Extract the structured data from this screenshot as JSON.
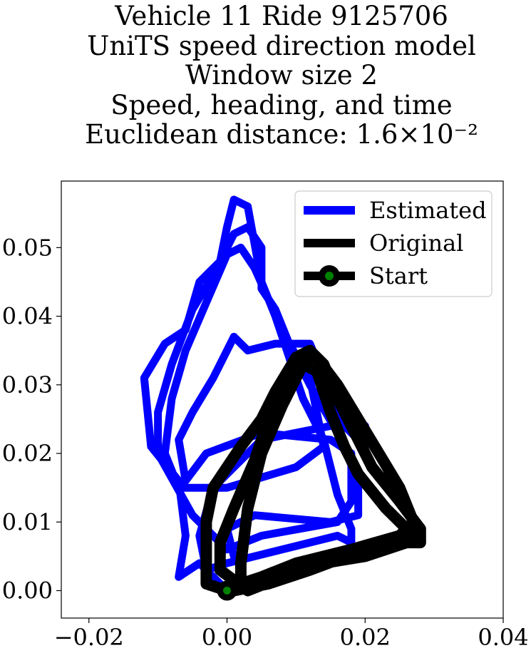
{
  "chart_data": {
    "type": "line",
    "title_lines": [
      "Vehicle 11 Ride 9125706",
      "UniTS speed direction model",
      "Window size 2",
      "Speed, heading, and time",
      "Euclidean distance: 1.6×10⁻²"
    ],
    "xlabel": "",
    "ylabel": "",
    "xlim": [
      -0.024,
      0.04
    ],
    "ylim": [
      -0.004,
      0.0597
    ],
    "xticks": [
      -0.02,
      0.0,
      0.02,
      0.04
    ],
    "xtick_labels": [
      "−0.02",
      "0.00",
      "0.02",
      "0.04"
    ],
    "yticks": [
      0.0,
      0.01,
      0.02,
      0.03,
      0.04,
      0.05
    ],
    "ytick_labels": [
      "0.00",
      "0.01",
      "0.02",
      "0.03",
      "0.04",
      "0.05"
    ],
    "grid": false,
    "legend_position": "upper right",
    "legend": [
      "Estimated",
      "Original",
      "Start"
    ],
    "series": [
      {
        "name": "Estimated",
        "color": "#0000ff",
        "points": [
          [
            0.0,
            0.0
          ],
          [
            -0.004,
            0.004
          ],
          [
            -0.007,
            0.002
          ],
          [
            -0.006,
            0.008
          ],
          [
            -0.007,
            0.016
          ],
          [
            -0.011,
            0.021
          ],
          [
            -0.012,
            0.031
          ],
          [
            -0.009,
            0.036
          ],
          [
            -0.006,
            0.038
          ],
          [
            -0.004,
            0.045
          ],
          [
            -0.001,
            0.048
          ],
          [
            0.0,
            0.053
          ],
          [
            0.001,
            0.057
          ],
          [
            0.003,
            0.056
          ],
          [
            0.005,
            0.045
          ],
          [
            0.007,
            0.04
          ],
          [
            0.009,
            0.034
          ],
          [
            0.011,
            0.028
          ],
          [
            0.014,
            0.022
          ],
          [
            0.016,
            0.014
          ],
          [
            0.018,
            0.009
          ],
          [
            0.018,
            0.007
          ],
          [
            0.016,
            0.008
          ],
          [
            0.0,
            0.004
          ],
          [
            -0.003,
            0.003
          ],
          [
            -0.004,
            0.008
          ],
          [
            -0.002,
            0.015
          ],
          [
            0.005,
            0.022
          ],
          [
            0.015,
            0.024
          ],
          [
            0.02,
            0.024
          ],
          [
            0.02,
            0.021
          ],
          [
            0.017,
            0.024
          ],
          [
            0.012,
            0.036
          ],
          [
            0.007,
            0.036
          ],
          [
            0.003,
            0.035
          ],
          [
            0.001,
            0.037
          ],
          [
            -0.002,
            0.031
          ],
          [
            -0.005,
            0.026
          ],
          [
            -0.007,
            0.022
          ],
          [
            -0.006,
            0.016
          ],
          [
            -0.003,
            0.02
          ],
          [
            0.005,
            0.023
          ],
          [
            0.015,
            0.022
          ],
          [
            0.018,
            0.02
          ],
          [
            0.018,
            0.013
          ],
          [
            0.016,
            0.01
          ],
          [
            0.005,
            0.008
          ],
          [
            0.0,
            0.006
          ],
          [
            -0.005,
            0.011
          ],
          [
            -0.01,
            0.02
          ],
          [
            -0.01,
            0.026
          ],
          [
            -0.008,
            0.033
          ],
          [
            -0.005,
            0.041
          ],
          [
            -0.002,
            0.046
          ],
          [
            0.001,
            0.052
          ],
          [
            0.003,
            0.053
          ],
          [
            0.005,
            0.05
          ],
          [
            0.005,
            0.044
          ],
          [
            0.007,
            0.041
          ],
          [
            0.009,
            0.036
          ],
          [
            0.012,
            0.031
          ],
          [
            0.013,
            0.026
          ],
          [
            0.014,
            0.021
          ],
          [
            0.01,
            0.018
          ],
          [
            0.0,
            0.015
          ],
          [
            -0.007,
            0.015
          ],
          [
            -0.009,
            0.02
          ],
          [
            -0.008,
            0.028
          ],
          [
            -0.006,
            0.035
          ],
          [
            -0.003,
            0.042
          ],
          [
            0.0,
            0.049
          ],
          [
            0.002,
            0.05
          ],
          [
            0.004,
            0.047
          ],
          [
            0.008,
            0.038
          ],
          [
            0.012,
            0.03
          ],
          [
            0.016,
            0.023
          ],
          [
            0.019,
            0.016
          ],
          [
            0.019,
            0.011
          ],
          [
            0.015,
            0.01
          ],
          [
            0.004,
            0.011
          ],
          [
            0.0,
            0.009
          ],
          [
            0.001,
            0.005
          ]
        ]
      },
      {
        "name": "Original",
        "color": "#000000",
        "points": [
          [
            0.0,
            0.0
          ],
          [
            -0.003,
            0.001
          ],
          [
            -0.003,
            0.01
          ],
          [
            -0.002,
            0.015
          ],
          [
            0.002,
            0.021
          ],
          [
            0.005,
            0.025
          ],
          [
            0.007,
            0.029
          ],
          [
            0.01,
            0.034
          ],
          [
            0.012,
            0.035
          ],
          [
            0.014,
            0.033
          ],
          [
            0.016,
            0.028
          ],
          [
            0.018,
            0.024
          ],
          [
            0.021,
            0.018
          ],
          [
            0.025,
            0.013
          ],
          [
            0.028,
            0.009
          ],
          [
            0.028,
            0.007
          ],
          [
            0.026,
            0.007
          ],
          [
            0.02,
            0.005
          ],
          [
            0.014,
            0.004
          ],
          [
            0.008,
            0.002
          ],
          [
            0.003,
            0.0
          ],
          [
            -0.001,
            0.003
          ],
          [
            -0.001,
            0.007
          ],
          [
            0.001,
            0.012
          ],
          [
            0.004,
            0.019
          ],
          [
            0.006,
            0.025
          ],
          [
            0.008,
            0.03
          ],
          [
            0.011,
            0.034
          ],
          [
            0.013,
            0.034
          ],
          [
            0.016,
            0.03
          ],
          [
            0.019,
            0.025
          ],
          [
            0.022,
            0.02
          ],
          [
            0.025,
            0.015
          ],
          [
            0.027,
            0.01
          ],
          [
            0.025,
            0.008
          ],
          [
            0.018,
            0.006
          ],
          [
            0.01,
            0.004
          ],
          [
            0.005,
            0.002
          ],
          [
            0.002,
            0.001
          ],
          [
            0.002,
            0.004
          ],
          [
            0.003,
            0.012
          ],
          [
            0.005,
            0.02
          ],
          [
            0.008,
            0.027
          ],
          [
            0.011,
            0.033
          ],
          [
            0.013,
            0.032
          ],
          [
            0.015,
            0.026
          ],
          [
            0.017,
            0.021
          ],
          [
            0.019,
            0.017
          ],
          [
            0.023,
            0.012
          ],
          [
            0.027,
            0.008
          ],
          [
            0.02,
            0.006
          ],
          [
            0.012,
            0.003
          ],
          [
            0.006,
            0.001
          ],
          [
            0.001,
            0.0
          ],
          [
            0.0,
            0.0
          ]
        ]
      }
    ],
    "start": {
      "name": "Start",
      "x": 0.0,
      "y": 0.0,
      "marker_color": "#008000",
      "edge_color": "#000000"
    }
  }
}
